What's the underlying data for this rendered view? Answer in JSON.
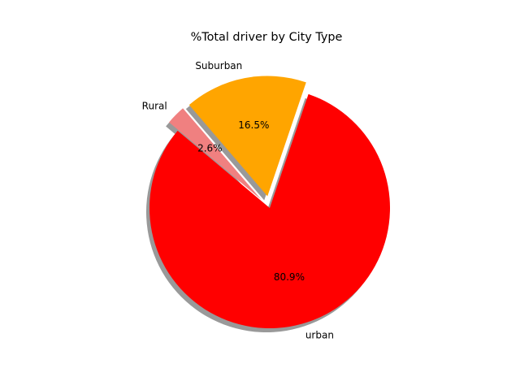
{
  "chart_data": {
    "type": "pie",
    "title": "%Total driver by City Type",
    "slices": [
      {
        "label": "urban",
        "value": 80.9,
        "pct_label": "80.9%",
        "color": "#ff0000",
        "explode": 0
      },
      {
        "label": "Suburban",
        "value": 16.5,
        "pct_label": "16.5%",
        "color": "#ffa500",
        "explode": 0.1
      },
      {
        "label": "Rural",
        "value": 2.6,
        "pct_label": "2.6%",
        "color": "#f08080",
        "explode": 0.1
      }
    ],
    "shadow": true
  }
}
